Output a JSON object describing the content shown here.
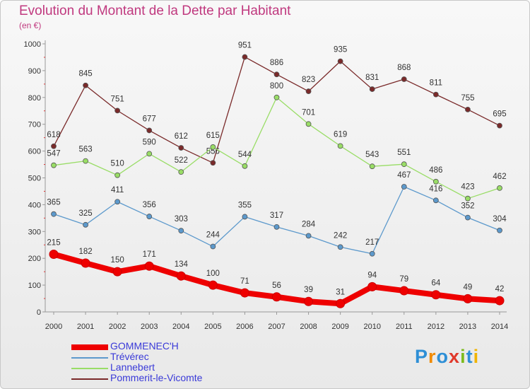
{
  "title": "Evolution du Montant de la Dette par Habitant",
  "subtitle": "(en €)",
  "logo": {
    "text": "Proxiti",
    "letters": [
      {
        "c": "P",
        "color": "#2e8fd6"
      },
      {
        "c": "r",
        "color": "#f08a00"
      },
      {
        "c": "o",
        "color": "#2e8fd6"
      },
      {
        "c": "x",
        "color": "#e0392b"
      },
      {
        "c": "i",
        "color": "#7dbb1e"
      },
      {
        "c": "t",
        "color": "#2e8fd6"
      },
      {
        "c": "i",
        "color": "#f0b400"
      }
    ]
  },
  "chart_data": {
    "type": "line",
    "title": "Evolution du Montant de la Dette par Habitant",
    "subtitle": "(en €)",
    "xlabel": "",
    "ylabel": "",
    "ylim": [
      0,
      1000
    ],
    "yticks": [
      0,
      100,
      200,
      300,
      400,
      500,
      600,
      700,
      800,
      900,
      1000
    ],
    "x": [
      2000,
      2001,
      2002,
      2003,
      2004,
      2005,
      2006,
      2007,
      2008,
      2009,
      2010,
      2011,
      2012,
      2013,
      2014
    ],
    "grid": false,
    "legend_position": "bottom-left",
    "series": [
      {
        "name": "GOMMENEC'H",
        "color": "#ee0000",
        "values": [
          215,
          182,
          150,
          171,
          134,
          100,
          71,
          56,
          39,
          31,
          94,
          79,
          64,
          49,
          42
        ]
      },
      {
        "name": "Trévérec",
        "color": "#5c99cc",
        "values": [
          365,
          325,
          411,
          356,
          303,
          244,
          355,
          317,
          284,
          242,
          217,
          467,
          416,
          352,
          304
        ]
      },
      {
        "name": "Lannebert",
        "color": "#99dd66",
        "values": [
          547,
          563,
          510,
          590,
          522,
          615,
          544,
          800,
          701,
          619,
          543,
          551,
          486,
          423,
          462
        ]
      },
      {
        "name": "Pommerit-le-Vicomte",
        "color": "#7a2a2a",
        "values": [
          618,
          845,
          751,
          677,
          612,
          556,
          951,
          886,
          823,
          935,
          831,
          868,
          811,
          755,
          695
        ]
      }
    ]
  }
}
